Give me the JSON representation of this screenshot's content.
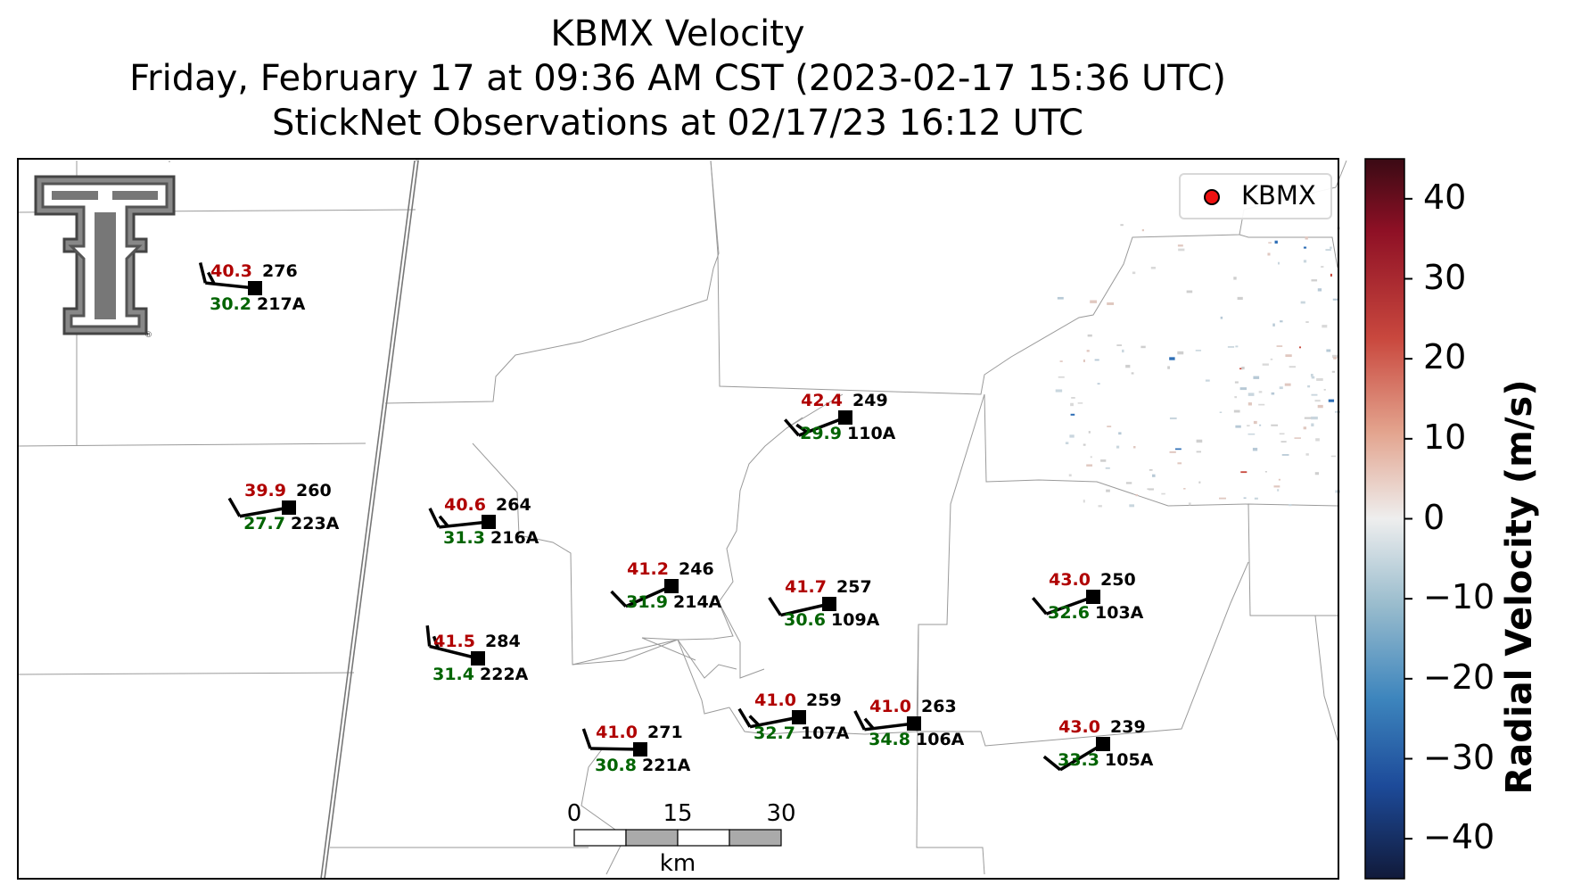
{
  "title_lines": [
    "KBMX Velocity",
    "Friday, February 17 at 09:36 AM CST (2023-02-17 15:36 UTC)",
    "StickNet Observations at 02/17/23 16:12 UTC"
  ],
  "legend": {
    "label": "KBMX",
    "marker_color": "#ee1111"
  },
  "colorbar": {
    "label": "Radial Velocity (m/s)",
    "ticks": [
      "40",
      "30",
      "20",
      "10",
      "0",
      "−10",
      "−20",
      "−30",
      "−40"
    ],
    "range": [
      -45,
      45
    ],
    "colors": [
      "#a11926",
      "#d1594a",
      "#e8a08a",
      "#ebebeb",
      "#8fb3c8",
      "#2f6fb6",
      "#1a1f4a"
    ]
  },
  "scale_bar": {
    "ticks": [
      "0",
      "15",
      "30"
    ],
    "unit": "km"
  },
  "logo": "texas-tech-double-t-logo",
  "colors": {
    "gust": "#b00000",
    "temperature": "#006400",
    "station": "#000000"
  },
  "stations": [
    {
      "id": "217A",
      "gust": "40.3",
      "dir": "276",
      "temp": "30.2",
      "barbs": 2
    },
    {
      "id": "223A",
      "gust": "39.9",
      "dir": "260",
      "temp": "27.7",
      "barbs": 1
    },
    {
      "id": "216A",
      "gust": "40.6",
      "dir": "264",
      "temp": "31.3",
      "barbs": 2
    },
    {
      "id": "110A",
      "gust": "42.4",
      "dir": "249",
      "temp": "29.9",
      "barbs": 2
    },
    {
      "id": "214A",
      "gust": "41.2",
      "dir": "246",
      "temp": "31.9",
      "barbs": 1
    },
    {
      "id": "109A",
      "gust": "41.7",
      "dir": "257",
      "temp": "30.6",
      "barbs": 1
    },
    {
      "id": "103A",
      "gust": "43.0",
      "dir": "250",
      "temp": "32.6",
      "barbs": 1
    },
    {
      "id": "222A",
      "gust": "41.5",
      "dir": "284",
      "temp": "31.4",
      "barbs": 2
    },
    {
      "id": "221A",
      "gust": "41.0",
      "dir": "271",
      "temp": "30.8",
      "barbs": 1
    },
    {
      "id": "107A",
      "gust": "41.0",
      "dir": "259",
      "temp": "32.7",
      "barbs": 2
    },
    {
      "id": "106A",
      "gust": "41.0",
      "dir": "263",
      "temp": "34.8",
      "barbs": 2
    },
    {
      "id": "105A",
      "gust": "43.0",
      "dir": "239",
      "temp": "33.3",
      "barbs": 1
    }
  ]
}
